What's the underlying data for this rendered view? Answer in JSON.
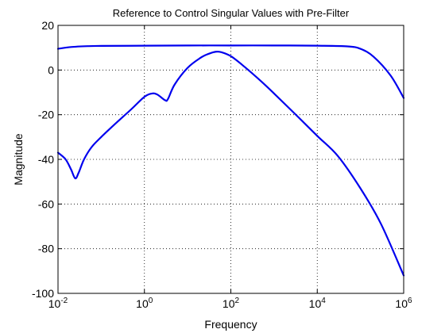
{
  "chart_data": {
    "type": "line",
    "title": "Reference to Control Singular Values with Pre-Filter",
    "xlabel": "Frequency",
    "ylabel": "Magnitude",
    "xscale": "log",
    "xlim": [
      0.01,
      1000000
    ],
    "ylim": [
      -100,
      20
    ],
    "grid": true,
    "line_color": "#0000ee",
    "x_ticks": [
      {
        "value": 0.01,
        "base": "10",
        "exp": "-2"
      },
      {
        "value": 1,
        "base": "10",
        "exp": "0"
      },
      {
        "value": 100,
        "base": "10",
        "exp": "2"
      },
      {
        "value": 10000,
        "base": "10",
        "exp": "4"
      },
      {
        "value": 1000000,
        "base": "10",
        "exp": "6"
      }
    ],
    "y_ticks": [
      {
        "value": 20,
        "label": "20"
      },
      {
        "value": 0,
        "label": "0"
      },
      {
        "value": -20,
        "label": "-20"
      },
      {
        "value": -40,
        "label": "-40"
      },
      {
        "value": -60,
        "label": "-60"
      },
      {
        "value": -80,
        "label": "-80"
      },
      {
        "value": -100,
        "label": "-100"
      }
    ],
    "series": [
      {
        "x": [
          0.01,
          0.02,
          0.05,
          0.1,
          1,
          10,
          100,
          1000,
          10000,
          50000,
          100000,
          200000,
          500000,
          1000000
        ],
        "y": [
          9.5,
          10.3,
          10.7,
          10.8,
          10.9,
          11.0,
          11.0,
          11.0,
          10.9,
          10.6,
          9.5,
          6.0,
          -2.5,
          -12.5
        ]
      },
      {
        "x": [
          0.01,
          0.015,
          0.02,
          0.025,
          0.03,
          0.04,
          0.06,
          0.1,
          0.2,
          0.5,
          1,
          1.5,
          2,
          3,
          3.5,
          5,
          10,
          20,
          30,
          45,
          60,
          100,
          200,
          500,
          1000,
          3000,
          10000,
          30000,
          100000,
          300000,
          1000000
        ],
        "y": [
          -37,
          -40,
          -44.5,
          -48.5,
          -46,
          -40,
          -34.5,
          -30,
          -24.5,
          -17.5,
          -12,
          -10.5,
          -11,
          -13.5,
          -13,
          -6.5,
          1,
          5.5,
          7.2,
          8.2,
          8.0,
          6.2,
          1.7,
          -5,
          -10.5,
          -19.5,
          -29.5,
          -38.5,
          -53,
          -69,
          -92
        ]
      }
    ]
  }
}
